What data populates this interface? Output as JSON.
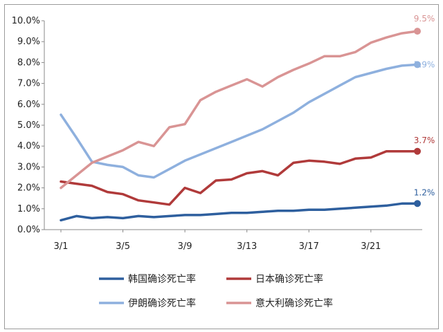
{
  "chart_data": {
    "type": "line",
    "title": "",
    "xlabel": "",
    "ylabel": "",
    "ylim": [
      0,
      10
    ],
    "y_ticks": [
      "0.0%",
      "1.0%",
      "2.0%",
      "3.0%",
      "4.0%",
      "5.0%",
      "6.0%",
      "7.0%",
      "8.0%",
      "9.0%",
      "10.0%"
    ],
    "x_tick_labels": [
      "3/1",
      "3/5",
      "3/9",
      "3/13",
      "3/17",
      "3/21"
    ],
    "x_tick_days": [
      1,
      5,
      9,
      13,
      17,
      21
    ],
    "grid": false,
    "legend_position": "bottom",
    "series": [
      {
        "name": "韩国确诊死亡率",
        "color": "#2e5f9e",
        "end_label": "1.2%",
        "x": [
          0,
          1,
          2,
          3,
          4,
          5,
          6,
          7,
          8,
          9,
          10,
          11,
          12,
          13,
          14,
          15,
          16,
          17,
          18,
          19,
          20,
          21,
          22,
          23
        ],
        "values": [
          0.45,
          0.65,
          0.55,
          0.6,
          0.55,
          0.65,
          0.6,
          0.65,
          0.7,
          0.7,
          0.75,
          0.8,
          0.8,
          0.85,
          0.9,
          0.9,
          0.95,
          0.95,
          1.0,
          1.05,
          1.1,
          1.15,
          1.25,
          1.25
        ]
      },
      {
        "name": "日本确诊死亡率",
        "color": "#b03a3a",
        "end_label": "3.7%",
        "x": [
          0,
          1,
          2,
          3,
          4,
          5,
          6,
          7,
          8,
          9,
          10,
          11,
          12,
          13,
          14,
          15,
          16,
          17,
          18,
          19,
          20,
          21,
          22,
          23
        ],
        "values": [
          2.3,
          2.2,
          2.1,
          1.8,
          1.7,
          1.4,
          1.3,
          1.2,
          2.0,
          1.75,
          2.35,
          2.4,
          2.7,
          2.8,
          2.6,
          3.2,
          3.3,
          3.25,
          3.15,
          3.4,
          3.45,
          3.75,
          3.75,
          3.75
        ]
      },
      {
        "name": "伊朗确诊死亡率",
        "color": "#8eb0de",
        "end_label": "7.9%",
        "x": [
          0,
          1,
          2,
          3,
          4,
          5,
          6,
          7,
          8,
          9,
          10,
          11,
          12,
          13,
          14,
          15,
          16,
          17,
          18,
          19,
          20,
          21,
          22,
          23
        ],
        "values": [
          5.5,
          4.4,
          3.25,
          3.1,
          3.0,
          2.6,
          2.5,
          2.9,
          3.3,
          3.6,
          3.9,
          4.2,
          4.5,
          4.8,
          5.2,
          5.6,
          6.1,
          6.5,
          6.9,
          7.3,
          7.5,
          7.7,
          7.85,
          7.9
        ]
      },
      {
        "name": "意大利确诊死亡率",
        "color": "#d99494",
        "end_label": "9.5%",
        "x": [
          0,
          1,
          2,
          3,
          4,
          5,
          6,
          7,
          8,
          9,
          10,
          11,
          12,
          13,
          14,
          15,
          16,
          17,
          18,
          19,
          20,
          21,
          22,
          23
        ],
        "values": [
          2.0,
          2.6,
          3.2,
          3.5,
          3.8,
          4.2,
          4.0,
          4.9,
          5.05,
          6.2,
          6.6,
          6.9,
          7.2,
          6.85,
          7.3,
          7.65,
          7.95,
          8.3,
          8.3,
          8.5,
          8.95,
          9.2,
          9.4,
          9.5
        ]
      }
    ]
  }
}
